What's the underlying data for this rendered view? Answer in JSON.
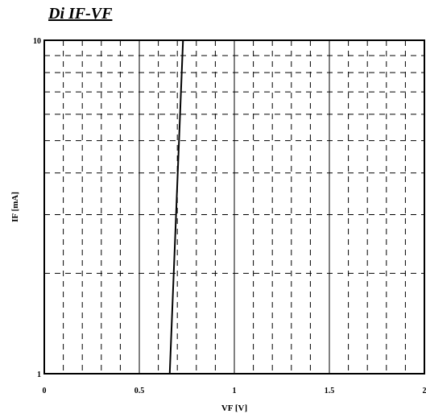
{
  "chart_data": {
    "type": "line",
    "title": "Di IF-VF",
    "xlabel": "VF [V]",
    "ylabel": "IF [mA]",
    "xlim": [
      0,
      2
    ],
    "ylim": [
      1,
      10
    ],
    "y_scale": "log",
    "grid": true,
    "x_ticks": [
      "0",
      "0.5",
      "1",
      "1.5",
      "2"
    ],
    "y_ticks": [
      "1",
      "10"
    ],
    "series": [
      {
        "x": [
          0.66,
          0.73
        ],
        "y": [
          1,
          10
        ]
      }
    ]
  }
}
